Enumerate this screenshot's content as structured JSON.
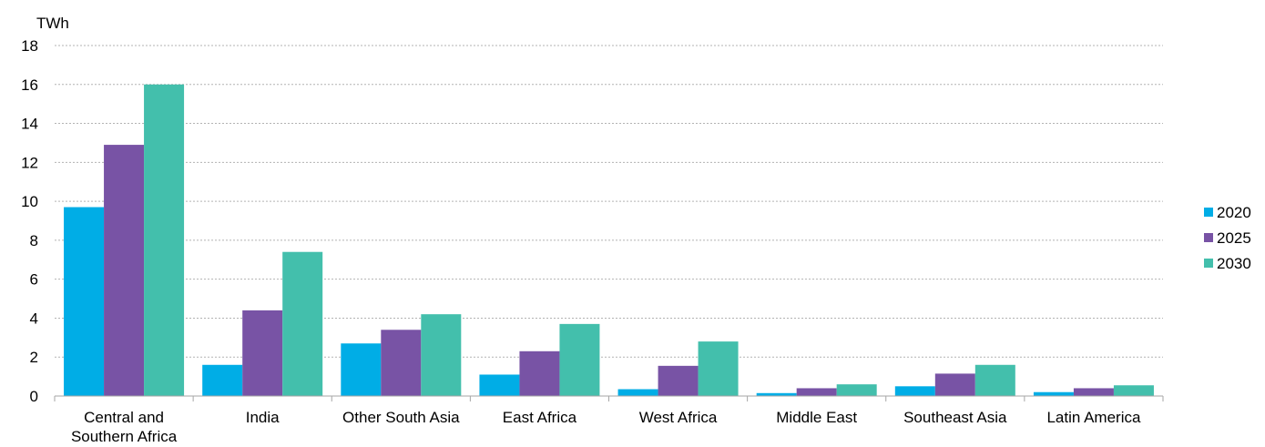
{
  "chart_data": {
    "type": "bar",
    "unit_label": "TWh",
    "categories": [
      [
        "Central and",
        "Southern Africa"
      ],
      [
        "India"
      ],
      [
        "Other South Asia"
      ],
      [
        "East Africa"
      ],
      [
        "West Africa"
      ],
      [
        "Middle East"
      ],
      [
        "Southeast Asia"
      ],
      [
        "Latin America"
      ]
    ],
    "series": [
      {
        "name": "2020",
        "color": "#00ADE6",
        "values": [
          9.7,
          1.6,
          2.7,
          1.1,
          0.35,
          0.15,
          0.5,
          0.2
        ]
      },
      {
        "name": "2025",
        "color": "#7853A5",
        "values": [
          12.9,
          4.4,
          3.4,
          2.3,
          1.55,
          0.4,
          1.15,
          0.4
        ]
      },
      {
        "name": "2030",
        "color": "#43BFAC",
        "values": [
          16.0,
          7.4,
          4.2,
          3.7,
          2.8,
          0.6,
          1.6,
          0.55
        ]
      }
    ],
    "ylim": [
      0,
      18
    ],
    "yticks": [
      "0",
      "2",
      "4",
      "6",
      "8",
      "10",
      "12",
      "14",
      "16",
      "18"
    ],
    "grid": true,
    "legend_position": "right"
  }
}
